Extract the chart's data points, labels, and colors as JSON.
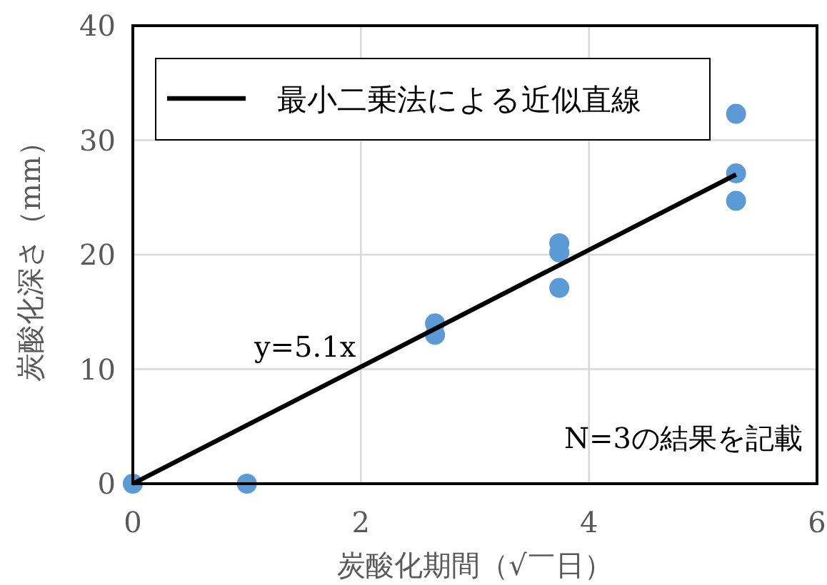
{
  "chart_data": {
    "type": "scatter",
    "xlabel": "炭酸化期間（√￣日）",
    "ylabel": "炭酸化深さ（mm）",
    "xlim": [
      0,
      6
    ],
    "ylim": [
      0,
      40
    ],
    "xticks": [
      0,
      2,
      4,
      6
    ],
    "yticks": [
      0,
      10,
      20,
      30,
      40
    ],
    "grid": true,
    "legend": "top left",
    "annotations": [
      "y=5.1x",
      "N=3の結果を記載"
    ],
    "series": [
      {
        "type": "scatter",
        "marker": "circle",
        "color": "#5b9bd5",
        "x": [
          0,
          1,
          2.65,
          2.65,
          3.74,
          3.74,
          3.74,
          5.29,
          5.29,
          5.29
        ],
        "values": [
          0,
          0,
          13,
          14,
          21,
          20.2,
          17.1,
          32.3,
          27.1,
          24.7
        ]
      },
      {
        "type": "line",
        "marker": "none",
        "name": "最小二乗法による近似直線",
        "color": "#000000",
        "x": [
          0,
          5.29
        ],
        "values": [
          0,
          27
        ]
      }
    ]
  }
}
